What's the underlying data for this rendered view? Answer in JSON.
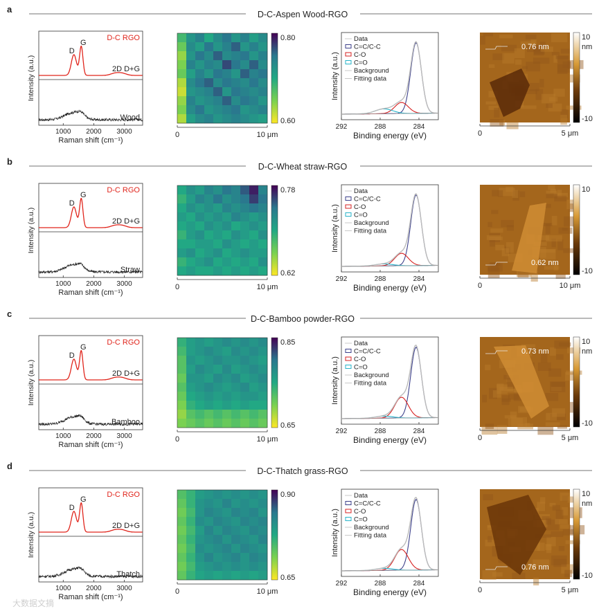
{
  "figure": {
    "panels": [
      {
        "letter": "a",
        "title": "D-C-Aspen Wood-RGO",
        "raman": {
          "top_label": "D-C RGO",
          "peak_d": "D",
          "peak_g": "G",
          "peak_2d": "2D D+G",
          "bottom_label": "Wood",
          "ylabel": "Intensity (a.u.)",
          "xlabel": "Raman shift (cm⁻¹)",
          "ticks": [
            "1000",
            "2000",
            "3000"
          ]
        },
        "map": {
          "cbar_max": "0.80",
          "cbar_min": "0.60",
          "x0": "0",
          "x1": "10 μm",
          "grid": [
            [
              0.68,
              0.72,
              0.74,
              0.7,
              0.73,
              0.75,
              0.72,
              0.74,
              0.71,
              0.73
            ],
            [
              0.66,
              0.73,
              0.71,
              0.75,
              0.72,
              0.74,
              0.76,
              0.72,
              0.74,
              0.72
            ],
            [
              0.64,
              0.72,
              0.75,
              0.73,
              0.76,
              0.73,
              0.74,
              0.75,
              0.72,
              0.74
            ],
            [
              0.65,
              0.74,
              0.72,
              0.74,
              0.73,
              0.77,
              0.75,
              0.73,
              0.76,
              0.73
            ],
            [
              0.66,
              0.71,
              0.74,
              0.72,
              0.75,
              0.74,
              0.72,
              0.76,
              0.74,
              0.75
            ],
            [
              0.63,
              0.73,
              0.75,
              0.76,
              0.73,
              0.75,
              0.74,
              0.73,
              0.75,
              0.73
            ],
            [
              0.62,
              0.72,
              0.73,
              0.74,
              0.76,
              0.72,
              0.75,
              0.74,
              0.73,
              0.74
            ],
            [
              0.64,
              0.74,
              0.72,
              0.73,
              0.74,
              0.76,
              0.73,
              0.75,
              0.74,
              0.72
            ],
            [
              0.65,
              0.73,
              0.75,
              0.72,
              0.73,
              0.74,
              0.75,
              0.72,
              0.73,
              0.74
            ],
            [
              0.63,
              0.71,
              0.73,
              0.74,
              0.72,
              0.73,
              0.74,
              0.73,
              0.72,
              0.71
            ]
          ],
          "vmin": 0.6,
          "vmax": 0.8
        },
        "xps": {
          "legend": [
            "Data",
            "C=C/C-C",
            "C-O",
            "C=O",
            "Background",
            "Fitting data"
          ],
          "ylabel": "Intensity (a.u.)",
          "xlabel": "Binding energy (eV)",
          "ticks": [
            "292",
            "288",
            "284"
          ]
        },
        "afm": {
          "height_label": "0.76 nm",
          "cbar_top": "10",
          "cbar_unit": "nm",
          "cbar_bottom": "-10",
          "x0": "0",
          "x1": "5 μm"
        }
      },
      {
        "letter": "b",
        "title": "D-C-Wheat straw-RGO",
        "raman": {
          "top_label": "D-C RGO",
          "peak_d": "D",
          "peak_g": "G",
          "peak_2d": "2D D+G",
          "bottom_label": "Straw",
          "ylabel": "Intensity (a.u.)",
          "xlabel": "Raman shift (cm⁻¹)",
          "ticks": [
            "1000",
            "2000",
            "3000"
          ]
        },
        "map": {
          "cbar_max": "0.78",
          "cbar_min": "0.62",
          "x0": "0",
          "x1": "10 μm",
          "grid": [
            [
              0.7,
              0.72,
              0.71,
              0.73,
              0.72,
              0.74,
              0.73,
              0.75,
              0.77,
              0.73
            ],
            [
              0.69,
              0.71,
              0.73,
              0.72,
              0.74,
              0.72,
              0.73,
              0.74,
              0.76,
              0.74
            ],
            [
              0.7,
              0.72,
              0.71,
              0.72,
              0.71,
              0.73,
              0.72,
              0.73,
              0.74,
              0.73
            ],
            [
              0.71,
              0.7,
              0.72,
              0.71,
              0.72,
              0.71,
              0.73,
              0.72,
              0.71,
              0.72
            ],
            [
              0.7,
              0.71,
              0.7,
              0.72,
              0.71,
              0.72,
              0.7,
              0.71,
              0.72,
              0.71
            ],
            [
              0.69,
              0.71,
              0.72,
              0.7,
              0.71,
              0.7,
              0.72,
              0.71,
              0.7,
              0.72
            ],
            [
              0.7,
              0.7,
              0.71,
              0.71,
              0.7,
              0.72,
              0.71,
              0.7,
              0.71,
              0.7
            ],
            [
              0.71,
              0.72,
              0.7,
              0.71,
              0.72,
              0.7,
              0.71,
              0.72,
              0.71,
              0.71
            ],
            [
              0.69,
              0.7,
              0.71,
              0.72,
              0.7,
              0.71,
              0.7,
              0.71,
              0.7,
              0.72
            ],
            [
              0.7,
              0.71,
              0.7,
              0.7,
              0.71,
              0.7,
              0.71,
              0.7,
              0.71,
              0.7
            ]
          ],
          "vmin": 0.62,
          "vmax": 0.78
        },
        "xps": {
          "legend": [
            "Data",
            "C=C/C-C",
            "C-O",
            "C=O",
            "Background",
            "Fitting data"
          ],
          "ylabel": "Intensity (a.u.)",
          "xlabel": "Binding energy (eV)",
          "ticks": [
            "292",
            "288",
            "284"
          ]
        },
        "afm": {
          "height_label": "0.62 nm",
          "cbar_top": "10",
          "cbar_unit": "",
          "cbar_bottom": "-10",
          "x0": "0",
          "x1": "10 μm"
        }
      },
      {
        "letter": "c",
        "title": "D-C-Bamboo powder-RGO",
        "raman": {
          "top_label": "D-C RGO",
          "peak_d": "D",
          "peak_g": "G",
          "peak_2d": "2D D+G",
          "bottom_label": "Bamboo",
          "ylabel": "Intensity (a.u.)",
          "xlabel": "Raman shift (cm⁻¹)",
          "ticks": [
            "1000",
            "2000",
            "3000"
          ]
        },
        "map": {
          "cbar_max": "0.85",
          "cbar_min": "0.65",
          "x0": "0",
          "x1": "10 μm",
          "grid": [
            [
              0.74,
              0.76,
              0.77,
              0.76,
              0.77,
              0.78,
              0.77,
              0.78,
              0.77,
              0.78
            ],
            [
              0.73,
              0.76,
              0.77,
              0.78,
              0.77,
              0.76,
              0.78,
              0.77,
              0.78,
              0.77
            ],
            [
              0.72,
              0.77,
              0.76,
              0.77,
              0.78,
              0.77,
              0.77,
              0.78,
              0.77,
              0.76
            ],
            [
              0.72,
              0.76,
              0.78,
              0.77,
              0.76,
              0.78,
              0.76,
              0.77,
              0.78,
              0.77
            ],
            [
              0.71,
              0.77,
              0.77,
              0.76,
              0.78,
              0.77,
              0.78,
              0.76,
              0.77,
              0.78
            ],
            [
              0.72,
              0.76,
              0.77,
              0.78,
              0.77,
              0.76,
              0.77,
              0.78,
              0.76,
              0.77
            ],
            [
              0.71,
              0.75,
              0.76,
              0.77,
              0.76,
              0.77,
              0.76,
              0.77,
              0.77,
              0.76
            ],
            [
              0.7,
              0.74,
              0.75,
              0.76,
              0.75,
              0.76,
              0.75,
              0.76,
              0.75,
              0.75
            ],
            [
              0.69,
              0.72,
              0.73,
              0.72,
              0.73,
              0.72,
              0.73,
              0.72,
              0.73,
              0.72
            ],
            [
              0.7,
              0.71,
              0.72,
              0.71,
              0.72,
              0.71,
              0.72,
              0.71,
              0.72,
              0.71
            ]
          ],
          "vmin": 0.65,
          "vmax": 0.85
        },
        "xps": {
          "legend": [
            "Data",
            "C=C/C-C",
            "C-O",
            "C=O",
            "Background",
            "Fitting data"
          ],
          "ylabel": "Intensity (a.u.)",
          "xlabel": "Binding energy (eV)",
          "ticks": [
            "292",
            "288",
            "284"
          ]
        },
        "afm": {
          "height_label": "0.73 nm",
          "cbar_top": "10",
          "cbar_unit": "nm",
          "cbar_bottom": "-10",
          "x0": "0",
          "x1": "5 μm"
        }
      },
      {
        "letter": "d",
        "title": "D-C-Thatch grass-RGO",
        "raman": {
          "top_label": "D-C RGO",
          "peak_d": "D",
          "peak_g": "G",
          "peak_2d": "2D D+G",
          "bottom_label": "Thatch",
          "ylabel": "Intensity (a.u.)",
          "xlabel": "Raman shift (cm⁻¹)",
          "ticks": [
            "1000",
            "2000",
            "3000"
          ]
        },
        "map": {
          "cbar_max": "0.90",
          "cbar_min": "0.65",
          "x0": "0",
          "x1": "10 μm",
          "grid": [
            [
              0.74,
              0.76,
              0.79,
              0.8,
              0.81,
              0.8,
              0.81,
              0.8,
              0.81,
              0.8
            ],
            [
              0.73,
              0.76,
              0.8,
              0.81,
              0.8,
              0.82,
              0.8,
              0.81,
              0.8,
              0.81
            ],
            [
              0.72,
              0.75,
              0.8,
              0.82,
              0.81,
              0.8,
              0.82,
              0.81,
              0.82,
              0.8
            ],
            [
              0.73,
              0.76,
              0.81,
              0.8,
              0.82,
              0.81,
              0.8,
              0.82,
              0.81,
              0.82
            ],
            [
              0.72,
              0.75,
              0.79,
              0.82,
              0.8,
              0.82,
              0.81,
              0.8,
              0.82,
              0.81
            ],
            [
              0.73,
              0.76,
              0.8,
              0.81,
              0.82,
              0.8,
              0.82,
              0.81,
              0.8,
              0.82
            ],
            [
              0.72,
              0.75,
              0.81,
              0.8,
              0.81,
              0.82,
              0.8,
              0.82,
              0.81,
              0.8
            ],
            [
              0.73,
              0.76,
              0.8,
              0.82,
              0.8,
              0.81,
              0.82,
              0.8,
              0.82,
              0.81
            ],
            [
              0.72,
              0.75,
              0.79,
              0.8,
              0.81,
              0.8,
              0.81,
              0.8,
              0.81,
              0.8
            ],
            [
              0.73,
              0.76,
              0.78,
              0.79,
              0.78,
              0.79,
              0.78,
              0.79,
              0.78,
              0.79
            ]
          ],
          "vmin": 0.65,
          "vmax": 0.9
        },
        "xps": {
          "legend": [
            "Data",
            "C=C/C-C",
            "C-O",
            "C=O",
            "Background",
            "Fitting data"
          ],
          "ylabel": "Intensity (a.u.)",
          "xlabel": "Binding energy (eV)",
          "ticks": [
            "292",
            "288",
            "284"
          ]
        },
        "afm": {
          "height_label": "0.76 nm",
          "cbar_top": "10",
          "cbar_unit": "nm",
          "cbar_bottom": "-10",
          "x0": "0",
          "x1": "5 μm"
        }
      }
    ],
    "watermark": "大数据文摘"
  },
  "colors": {
    "raman_top": "#e0241b",
    "raman_bottom": "#222222",
    "cc": "#3b3f8a",
    "co": "#d62020",
    "ceo": "#27b3c9",
    "fit": "#bbbbbb",
    "bg": "#999999"
  }
}
